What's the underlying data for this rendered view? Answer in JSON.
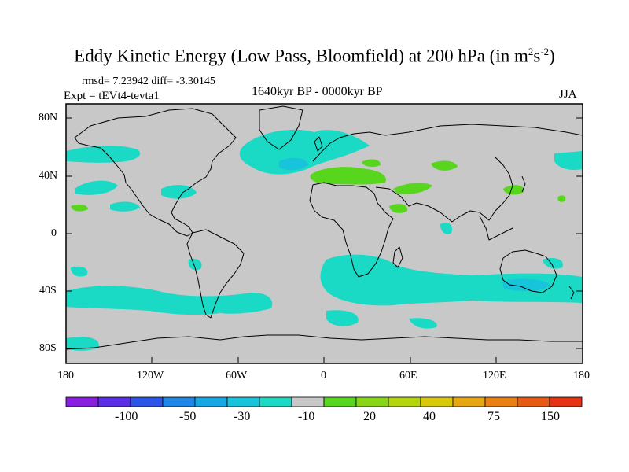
{
  "title": {
    "main": "Eddy Kinetic Energy (Low Pass, Bloomfield) at 200 hPa (in m",
    "sup1": "2",
    "mid": "s",
    "sup2": "-2",
    "close": ")"
  },
  "stats": "rmsd= 7.23942 diff= -3.30145",
  "experiment": "Expt = tEVt4-tevta1",
  "period": "1640kyr BP - 0000kyr BP",
  "season": "JJA",
  "lat_ticks": [
    "80N",
    "40N",
    "0",
    "40S",
    "80S"
  ],
  "lon_ticks": [
    "180",
    "120W",
    "60W",
    "0",
    "60E",
    "120E",
    "180"
  ],
  "colorbar": {
    "labels": [
      "-100",
      "-50",
      "-30",
      "-10",
      "20",
      "40",
      "75",
      "150"
    ],
    "colors": [
      "#8a1ee0",
      "#5a2ee6",
      "#2b55e8",
      "#1f86e6",
      "#16a8e2",
      "#17c4dc",
      "#1ad9c5",
      "#c8c8c8",
      "#58d61e",
      "#86d616",
      "#b4d40c",
      "#d8c808",
      "#e6a80e",
      "#e88012",
      "#e85a14",
      "#e63214"
    ]
  },
  "map": {
    "ocean_color": "#c8c8c8",
    "coast_color": "#000000",
    "negative_fill": "#1ad9c5",
    "strong_negative_fill": "#17c4dc",
    "positive_fill": "#58d61e"
  }
}
